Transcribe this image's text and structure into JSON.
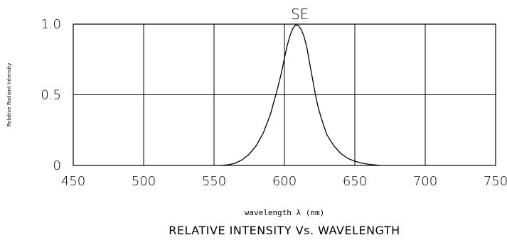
{
  "chart_data": {
    "type": "line",
    "title": "SE",
    "xlabel": "wavelength λ (nm)",
    "ylabel": "Relative Radiant Intensity",
    "caption": "RELATIVE INTENSITY Vs. WAVELENGTH",
    "xlim": [
      450,
      750
    ],
    "ylim": [
      0,
      1.0
    ],
    "x_ticks": [
      450,
      500,
      550,
      600,
      650,
      700,
      750
    ],
    "x_tick_labels": [
      "450",
      "500",
      "550",
      "600",
      "650",
      "700",
      "750"
    ],
    "y_ticks": [
      0,
      0.5,
      1.0
    ],
    "y_tick_labels": [
      "0",
      "0.5",
      "1.0"
    ],
    "grid": true,
    "series": [
      {
        "x": [
          555,
          560,
          565,
          570,
          575,
          580,
          585,
          590,
          595,
          598,
          600,
          602,
          604,
          606,
          608,
          610,
          612,
          614,
          616,
          618,
          620,
          622,
          624,
          626,
          630,
          635,
          640,
          645,
          650,
          655,
          660,
          665,
          668
        ],
        "y": [
          0,
          0.005,
          0.015,
          0.04,
          0.08,
          0.14,
          0.23,
          0.36,
          0.54,
          0.66,
          0.76,
          0.85,
          0.92,
          0.97,
          0.995,
          0.99,
          0.96,
          0.91,
          0.83,
          0.72,
          0.61,
          0.5,
          0.41,
          0.34,
          0.22,
          0.14,
          0.085,
          0.05,
          0.03,
          0.016,
          0.008,
          0.003,
          0
        ]
      }
    ]
  }
}
